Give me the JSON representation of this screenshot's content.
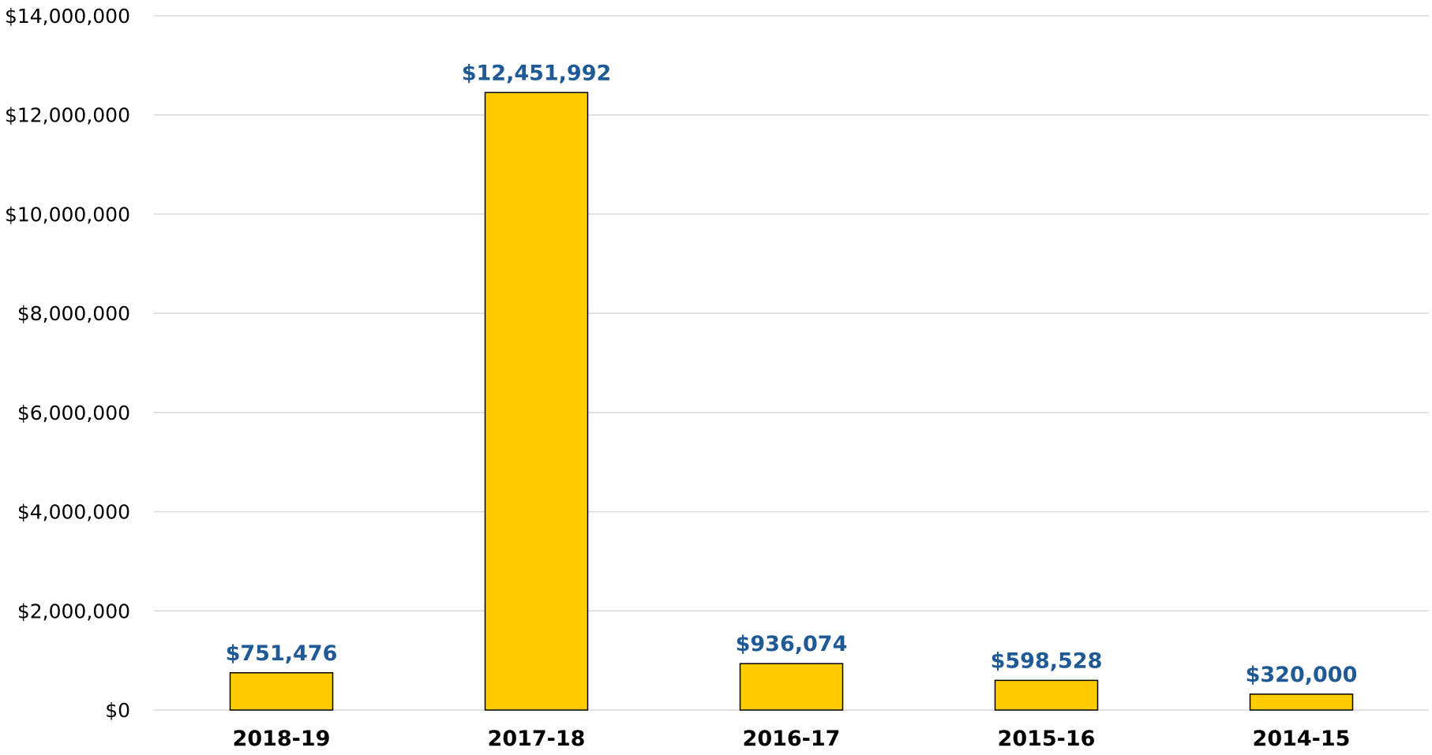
{
  "chart_data": {
    "type": "bar",
    "title": "",
    "xlabel": "",
    "ylabel": "",
    "categories": [
      "2018-19",
      "2017-18",
      "2016-17",
      "2015-16",
      "2014-15"
    ],
    "values": [
      751476,
      12451992,
      936074,
      598528,
      320000
    ],
    "data_labels": [
      "$751,476",
      "$12,451,992",
      "$936,074",
      "$598,528",
      "$320,000"
    ],
    "ylim": [
      0,
      14000000
    ],
    "yticks": [
      0,
      2000000,
      4000000,
      6000000,
      8000000,
      10000000,
      12000000,
      14000000
    ],
    "ytick_labels": [
      "$0",
      "$2,000,000",
      "$4,000,000",
      "$6,000,000",
      "$8,000,000",
      "$10,000,000",
      "$12,000,000",
      "$14,000,000"
    ],
    "grid": true,
    "legend": "none",
    "colors": {
      "bar_fill": "#FFCC00",
      "bar_stroke": "#000000",
      "data_label": "#1F5A96",
      "gridline": "#D9D9D9",
      "axis_text": "#000000"
    }
  }
}
